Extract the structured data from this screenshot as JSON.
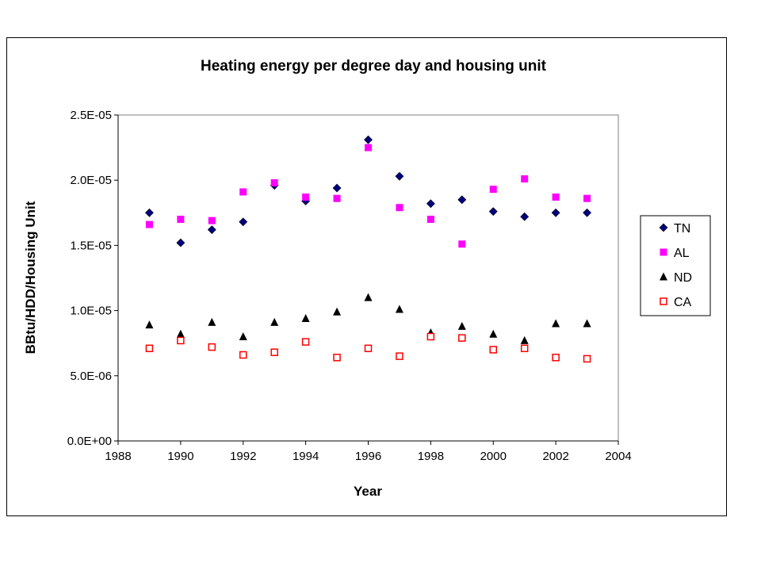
{
  "chart_data": {
    "type": "scatter",
    "title": "Heating energy per degree day and housing unit",
    "xlabel": "Year",
    "ylabel": "BBtu/HDD/Housing Unit",
    "xlim": [
      1988,
      2004
    ],
    "ylim": [
      0,
      2.5e-05
    ],
    "x_ticks": [
      "1988",
      "1990",
      "1992",
      "1994",
      "1996",
      "1998",
      "2000",
      "2002",
      "2004"
    ],
    "y_ticks": [
      "0.0E+00",
      "5.0E-06",
      "1.0E-05",
      "1.5E-05",
      "2.0E-05",
      "2.5E-05"
    ],
    "x_tick_values": [
      1988,
      1990,
      1992,
      1994,
      1996,
      1998,
      2000,
      2002,
      2004
    ],
    "y_tick_values": [
      0,
      5e-06,
      1e-05,
      1.5e-05,
      2e-05,
      2.5e-05
    ],
    "grid": false,
    "legend_position": "right",
    "x": [
      1989,
      1990,
      1991,
      1992,
      1993,
      1994,
      1995,
      1996,
      1997,
      1998,
      1999,
      2000,
      2001,
      2002,
      2003
    ],
    "series": [
      {
        "name": "TN",
        "marker": "diamond",
        "color": "#000080",
        "values": [
          1.75e-05,
          1.52e-05,
          1.62e-05,
          1.68e-05,
          1.96e-05,
          1.84e-05,
          1.94e-05,
          2.31e-05,
          2.03e-05,
          1.82e-05,
          1.85e-05,
          1.76e-05,
          1.72e-05,
          1.75e-05,
          1.75e-05
        ]
      },
      {
        "name": "AL",
        "marker": "square",
        "color": "#FF00FF",
        "values": [
          1.66e-05,
          1.7e-05,
          1.69e-05,
          1.91e-05,
          1.98e-05,
          1.87e-05,
          1.86e-05,
          2.25e-05,
          1.79e-05,
          1.7e-05,
          1.51e-05,
          1.93e-05,
          2.01e-05,
          1.87e-05,
          1.86e-05
        ]
      },
      {
        "name": "ND",
        "marker": "triangle",
        "color": "#000000",
        "values": [
          8.9e-06,
          8.2e-06,
          9.1e-06,
          8e-06,
          9.1e-06,
          9.4e-06,
          9.9e-06,
          1.1e-05,
          1.01e-05,
          8.3e-06,
          8.8e-06,
          8.2e-06,
          7.7e-06,
          9e-06,
          9e-06
        ]
      },
      {
        "name": "CA",
        "marker": "open-square",
        "color": "#FF0000",
        "values": [
          7.1e-06,
          7.7e-06,
          7.2e-06,
          6.6e-06,
          6.8e-06,
          7.6e-06,
          6.4e-06,
          7.1e-06,
          6.5e-06,
          8e-06,
          7.9e-06,
          7e-06,
          7.1e-06,
          6.4e-06,
          6.3e-06
        ]
      }
    ]
  }
}
